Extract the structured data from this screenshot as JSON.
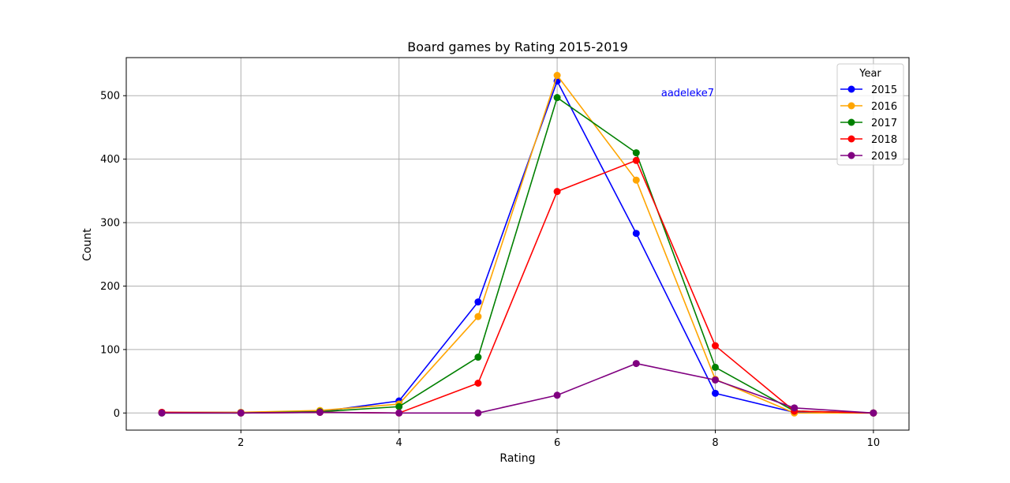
{
  "chart_data": {
    "type": "line",
    "title": "Board games by Rating 2015-2019",
    "xlabel": "Rating",
    "ylabel": "Count",
    "xlim": [
      0.55,
      10.45
    ],
    "ylim": [
      -27,
      560
    ],
    "xticks": [
      2,
      4,
      6,
      8,
      10
    ],
    "yticks": [
      0,
      100,
      200,
      300,
      400,
      500
    ],
    "grid": true,
    "legend": {
      "title": "Year",
      "placement": "top-right"
    },
    "annotation": {
      "text": "aadeleke7",
      "x": 7.65,
      "y": 505,
      "color": "#0000ff"
    },
    "x": [
      1,
      2,
      3,
      4,
      5,
      6,
      7,
      8,
      9,
      10
    ],
    "series": [
      {
        "name": "2015",
        "color": "#0000ff",
        "values": [
          1,
          1,
          2,
          19,
          175,
          523,
          283,
          31,
          1,
          0
        ]
      },
      {
        "name": "2016",
        "color": "#ffa500",
        "values": [
          1,
          1,
          4,
          14,
          152,
          532,
          367,
          53,
          0,
          0
        ]
      },
      {
        "name": "2017",
        "color": "#008000",
        "values": [
          0,
          0,
          2,
          10,
          88,
          497,
          410,
          72,
          3,
          0
        ]
      },
      {
        "name": "2018",
        "color": "#ff0000",
        "values": [
          1,
          0,
          1,
          0,
          47,
          349,
          398,
          106,
          3,
          0
        ]
      },
      {
        "name": "2019",
        "color": "#800080",
        "values": [
          0,
          0,
          1,
          0,
          0,
          28,
          78,
          52,
          8,
          0
        ]
      }
    ]
  }
}
